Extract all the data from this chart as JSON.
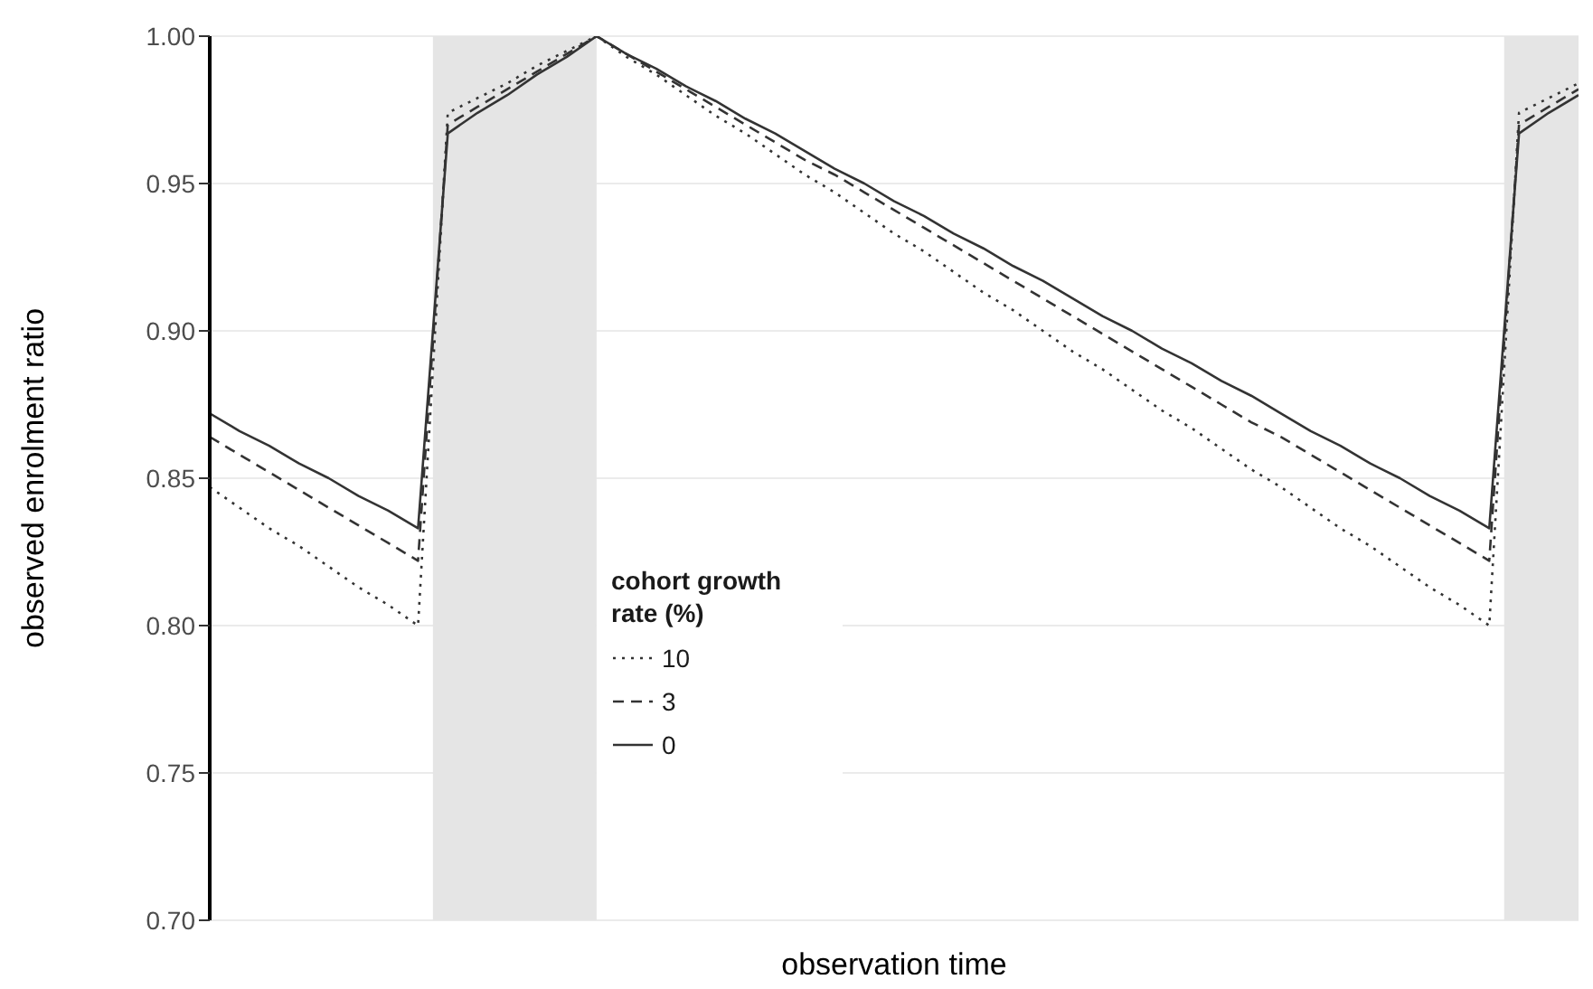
{
  "chart_data": {
    "type": "line",
    "xlabel": "observation time",
    "ylabel": "observed enrolment ratio",
    "legend_title": "cohort growth rate (%)",
    "categories": [
      null,
      null,
      null,
      null,
      null,
      null,
      null,
      null,
      null,
      null,
      null,
      null,
      null,
      null,
      null,
      null,
      null,
      null,
      null,
      null,
      null,
      null,
      null,
      null,
      null,
      null,
      null,
      null,
      null,
      null,
      null,
      null,
      null,
      null,
      null,
      null,
      null,
      null,
      null,
      null,
      null,
      null,
      null,
      null,
      null,
      null,
      null
    ],
    "ylim": [
      0.7,
      1.0
    ],
    "yticks": [
      {
        "value": 0.7,
        "label": "0.70"
      },
      {
        "value": 0.75,
        "label": "0.75"
      },
      {
        "value": 0.8,
        "label": "0.80"
      },
      {
        "value": 0.85,
        "label": "0.85"
      },
      {
        "value": 0.9,
        "label": "0.90"
      },
      {
        "value": 0.95,
        "label": "0.95"
      },
      {
        "value": 1.0,
        "label": "1.00"
      }
    ],
    "tick_labels": "y",
    "grid": "y",
    "legend": "left",
    "marker": "none",
    "series": [
      {
        "name": "10",
        "color": "#333333",
        "line_style": "dotted",
        "values": [
          0.847,
          0.84,
          0.833,
          0.827,
          0.82,
          0.813,
          0.807,
          0.8,
          0.974,
          0.979,
          0.984,
          0.99,
          0.995,
          1.0,
          0.993,
          0.987,
          0.98,
          0.973,
          0.967,
          0.96,
          0.953,
          0.947,
          0.94,
          0.933,
          0.927,
          0.92,
          0.913,
          0.907,
          0.9,
          0.893,
          0.887,
          0.88,
          0.873,
          0.867,
          0.86,
          0.853,
          0.847,
          0.84,
          0.833,
          0.827,
          0.82,
          0.813,
          0.807,
          0.8,
          0.974,
          0.979,
          0.984
        ]
      },
      {
        "name": "3",
        "color": "#333333",
        "line_style": "dashed",
        "values": [
          0.864,
          0.858,
          0.852,
          0.846,
          0.84,
          0.834,
          0.828,
          0.822,
          0.97,
          0.976,
          0.982,
          0.988,
          0.994,
          1.0,
          0.994,
          0.988,
          0.982,
          0.976,
          0.97,
          0.964,
          0.958,
          0.953,
          0.947,
          0.941,
          0.935,
          0.929,
          0.923,
          0.917,
          0.911,
          0.905,
          0.899,
          0.893,
          0.887,
          0.881,
          0.875,
          0.869,
          0.864,
          0.858,
          0.852,
          0.846,
          0.84,
          0.834,
          0.828,
          0.822,
          0.97,
          0.976,
          0.982
        ]
      },
      {
        "name": "0",
        "color": "#333333",
        "line_style": "solid",
        "values": [
          0.872,
          0.866,
          0.861,
          0.855,
          0.85,
          0.844,
          0.839,
          0.833,
          0.967,
          0.974,
          0.98,
          0.987,
          0.993,
          1.0,
          0.994,
          0.989,
          0.983,
          0.978,
          0.972,
          0.967,
          0.961,
          0.955,
          0.95,
          0.944,
          0.939,
          0.933,
          0.928,
          0.922,
          0.917,
          0.911,
          0.905,
          0.9,
          0.894,
          0.889,
          0.883,
          0.878,
          0.872,
          0.866,
          0.861,
          0.855,
          0.85,
          0.844,
          0.839,
          0.833,
          0.967,
          0.974,
          0.98
        ]
      }
    ]
  }
}
